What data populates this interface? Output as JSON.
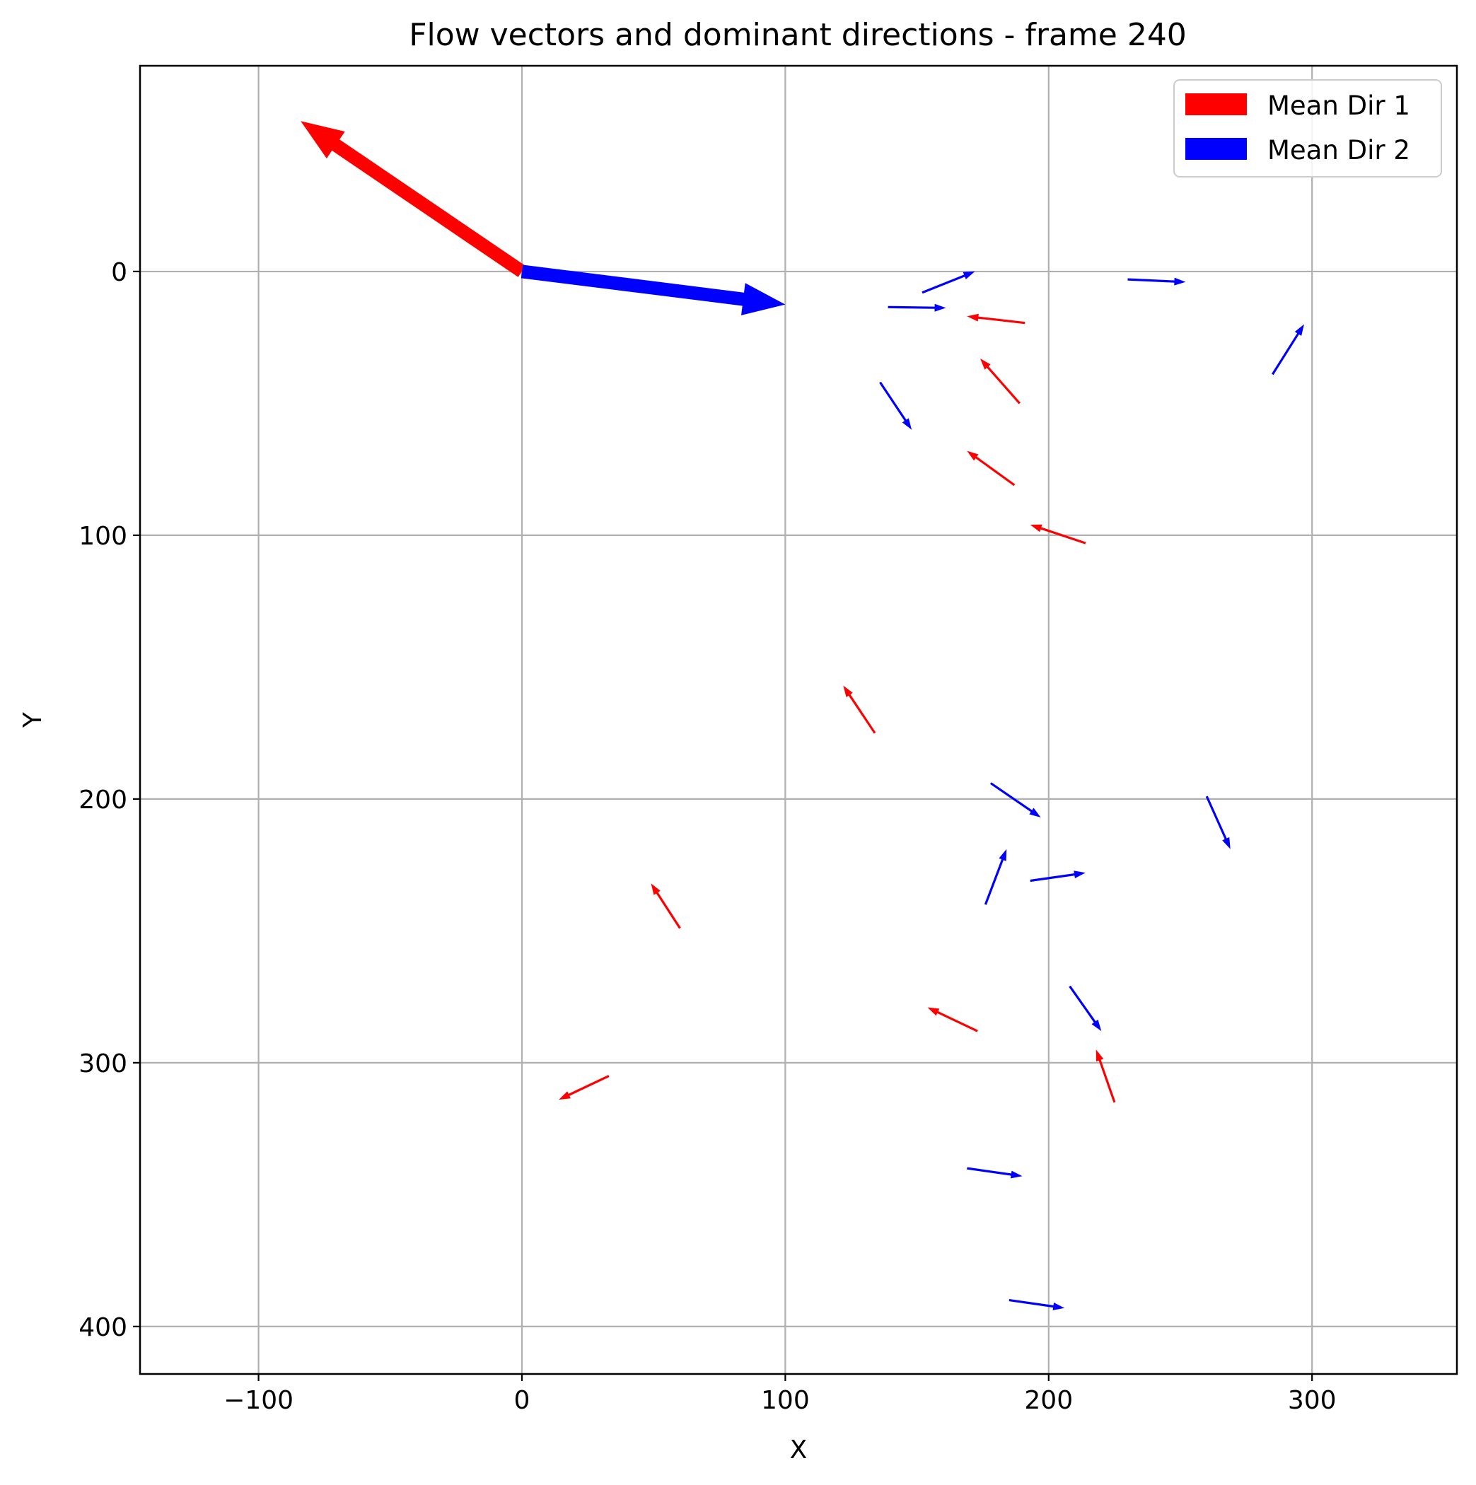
{
  "chart_data": {
    "type": "quiver",
    "title": "Flow vectors and dominant directions - frame 240",
    "xlabel": "X",
    "ylabel": "Y",
    "xlim": [
      -145,
      355
    ],
    "ylim": [
      418,
      -78
    ],
    "y_inverted": true,
    "xticks": [
      -100,
      0,
      100,
      200,
      300
    ],
    "yticks": [
      0,
      100,
      200,
      300,
      400
    ],
    "xtick_labels": [
      "−100",
      "0",
      "100",
      "200",
      "300"
    ],
    "ytick_labels": [
      "0",
      "100",
      "200",
      "300",
      "400"
    ],
    "grid": true,
    "legend": {
      "placement": "top-right",
      "entries": [
        {
          "label": "Mean Dir 1",
          "color": "#ff0000"
        },
        {
          "label": "Mean Dir 2",
          "color": "#0000ff"
        }
      ]
    },
    "mean_vectors": [
      {
        "name": "Mean Dir 1",
        "color": "#ff0000",
        "x0": 0,
        "y0": 0,
        "x1": -84,
        "y1": -57
      },
      {
        "name": "Mean Dir 2",
        "color": "#0000ff",
        "x0": 0,
        "y0": 0,
        "x1": 100,
        "y1": 12.5
      }
    ],
    "vectors": [
      {
        "color": "#0000ff",
        "x0": 152,
        "y0": 8,
        "x1": 172,
        "y1": 0
      },
      {
        "color": "#0000ff",
        "x0": 139,
        "y0": 13.5,
        "x1": 161,
        "y1": 13.8
      },
      {
        "color": "#ff0000",
        "x0": 191,
        "y0": 19.5,
        "x1": 169,
        "y1": 17
      },
      {
        "color": "#0000ff",
        "x0": 230,
        "y0": 3,
        "x1": 252,
        "y1": 4
      },
      {
        "color": "#0000ff",
        "x0": 285,
        "y0": 39,
        "x1": 297,
        "y1": 20
      },
      {
        "color": "#0000ff",
        "x0": 136,
        "y0": 42,
        "x1": 148,
        "y1": 60
      },
      {
        "color": "#ff0000",
        "x0": 189,
        "y0": 50,
        "x1": 174,
        "y1": 33
      },
      {
        "color": "#ff0000",
        "x0": 187,
        "y0": 81,
        "x1": 169,
        "y1": 68
      },
      {
        "color": "#ff0000",
        "x0": 214,
        "y0": 103,
        "x1": 193,
        "y1": 96
      },
      {
        "color": "#ff0000",
        "x0": 134,
        "y0": 175,
        "x1": 122,
        "y1": 157
      },
      {
        "color": "#0000ff",
        "x0": 178,
        "y0": 194,
        "x1": 197,
        "y1": 207
      },
      {
        "color": "#0000ff",
        "x0": 260,
        "y0": 199,
        "x1": 269,
        "y1": 219
      },
      {
        "color": "#0000ff",
        "x0": 176,
        "y0": 240,
        "x1": 184,
        "y1": 219
      },
      {
        "color": "#0000ff",
        "x0": 193,
        "y0": 231,
        "x1": 214,
        "y1": 228
      },
      {
        "color": "#ff0000",
        "x0": 60,
        "y0": 249,
        "x1": 49,
        "y1": 232
      },
      {
        "color": "#ff0000",
        "x0": 173,
        "y0": 288,
        "x1": 154,
        "y1": 279
      },
      {
        "color": "#0000ff",
        "x0": 208,
        "y0": 271,
        "x1": 220,
        "y1": 288
      },
      {
        "color": "#ff0000",
        "x0": 225,
        "y0": 315,
        "x1": 218,
        "y1": 295
      },
      {
        "color": "#ff0000",
        "x0": 33,
        "y0": 305,
        "x1": 14,
        "y1": 314
      },
      {
        "color": "#0000ff",
        "x0": 169,
        "y0": 340,
        "x1": 190,
        "y1": 343
      },
      {
        "color": "#0000ff",
        "x0": 185,
        "y0": 390,
        "x1": 206,
        "y1": 393
      }
    ]
  }
}
